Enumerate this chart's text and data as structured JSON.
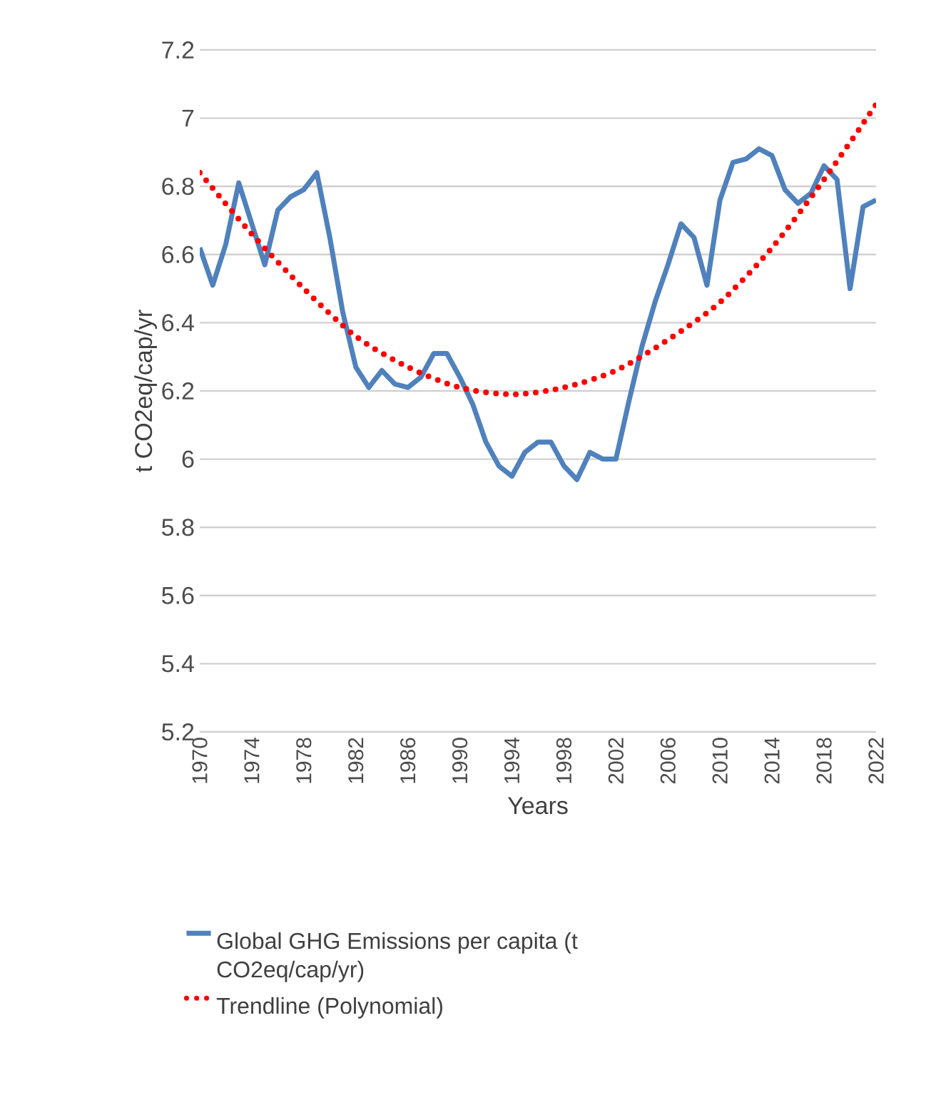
{
  "chart_data": {
    "type": "line",
    "xlabel": "Years",
    "ylabel": "t CO2eq/cap/yr",
    "x": [
      1970,
      1971,
      1972,
      1973,
      1974,
      1975,
      1976,
      1977,
      1978,
      1979,
      1980,
      1981,
      1982,
      1983,
      1984,
      1985,
      1986,
      1987,
      1988,
      1989,
      1990,
      1991,
      1992,
      1993,
      1994,
      1995,
      1996,
      1997,
      1998,
      1999,
      2000,
      2001,
      2002,
      2003,
      2004,
      2005,
      2006,
      2007,
      2008,
      2009,
      2010,
      2011,
      2012,
      2013,
      2014,
      2015,
      2016,
      2017,
      2018,
      2019,
      2020,
      2021,
      2022
    ],
    "series": [
      {
        "name": "Global GHG Emissions per capita (t CO2eq/cap/yr)",
        "color": "#4f81bd",
        "line_style": "solid",
        "values": [
          6.62,
          6.51,
          6.63,
          6.81,
          6.69,
          6.57,
          6.73,
          6.77,
          6.79,
          6.84,
          6.65,
          6.43,
          6.27,
          6.21,
          6.26,
          6.22,
          6.21,
          6.24,
          6.31,
          6.31,
          6.24,
          6.16,
          6.05,
          5.98,
          5.95,
          6.02,
          6.05,
          6.05,
          5.98,
          5.94,
          6.02,
          6.0,
          6.0,
          6.17,
          6.33,
          6.46,
          6.57,
          6.69,
          6.65,
          6.51,
          6.76,
          6.87,
          6.88,
          6.91,
          6.89,
          6.79,
          6.75,
          6.78,
          6.86,
          6.82,
          6.5,
          6.74,
          6.76
        ]
      },
      {
        "name": "Trendline (Polynomial)",
        "color": "#ff0000",
        "line_style": "dotted",
        "x": [
          1970,
          1974,
          1978,
          1982,
          1986,
          1990,
          1994,
          1998,
          2002,
          2006,
          2010,
          2014,
          2018,
          2022
        ],
        "values": [
          6.84,
          6.66,
          6.5,
          6.36,
          6.27,
          6.21,
          6.19,
          6.21,
          6.26,
          6.35,
          6.46,
          6.62,
          6.82,
          7.04
        ]
      }
    ],
    "xlim": [
      1970,
      2022
    ],
    "xticks": [
      1970,
      1974,
      1978,
      1982,
      1986,
      1990,
      1994,
      1998,
      2002,
      2006,
      2010,
      2014,
      2018,
      2022
    ],
    "ylim": [
      5.2,
      7.2
    ],
    "yticks": [
      5.2,
      5.4,
      5.6,
      5.8,
      6,
      6.2,
      6.4,
      6.6,
      6.8,
      7,
      7.2
    ],
    "grid": "y",
    "legend": "bottom",
    "marker": "none"
  }
}
